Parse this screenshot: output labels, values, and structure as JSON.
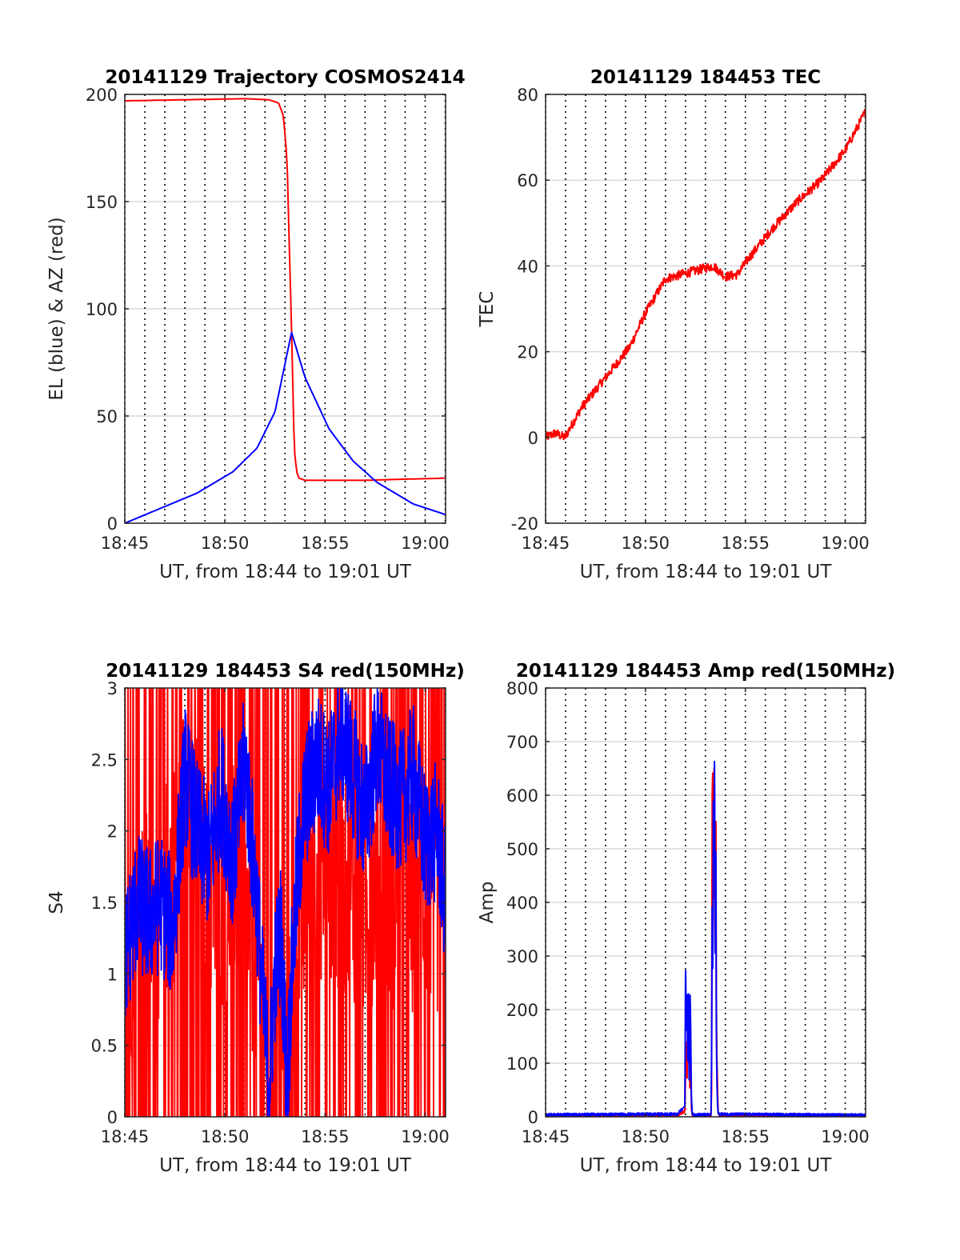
{
  "figure": {
    "background": "#ffffff",
    "grid_color": "#d9d9d9",
    "axis_color": "#262626"
  },
  "chart_data": [
    {
      "type": "line",
      "title": "20141129 Trajectory COSMOS2414",
      "xlabel": "UT, from 18:44 to 19:01 UT",
      "ylabel": "EL (blue) & AZ (red)",
      "xlim": [
        18.75,
        19.017
      ],
      "ylim": [
        0,
        200
      ],
      "x_ticks": [
        18.75,
        18.8333,
        18.9167,
        19.0
      ],
      "x_tick_labels": [
        "18:45",
        "18:50",
        "18:55",
        "19:00"
      ],
      "y_ticks": [
        0,
        50,
        100,
        150,
        200
      ],
      "y_tick_labels": [
        "0",
        "50",
        "100",
        "150",
        "200"
      ],
      "grid": "on",
      "series": [
        {
          "color": "#ff0000",
          "x": [
            18.75,
            18.8,
            18.85,
            18.87,
            18.878,
            18.882,
            18.885,
            18.8888,
            18.891,
            18.893,
            18.895,
            18.9,
            18.92,
            18.95,
            18.98,
            19.017
          ],
          "values": [
            197,
            197.5,
            198,
            197.5,
            196,
            190,
            170,
            90,
            35,
            24,
            21,
            20,
            20,
            20,
            20.5,
            21
          ]
        },
        {
          "color": "#0000ff",
          "x": [
            18.75,
            18.78,
            18.81,
            18.84,
            18.86,
            18.875,
            18.8888,
            18.9,
            18.92,
            18.94,
            18.96,
            18.99,
            19.017
          ],
          "values": [
            0,
            7,
            14,
            24,
            35,
            52,
            89,
            68,
            44,
            29,
            19,
            9,
            4
          ]
        }
      ]
    },
    {
      "type": "line",
      "title": "20141129 184453 TEC",
      "xlabel": "UT, from 18:44 to 19:01 UT",
      "ylabel": "TEC",
      "xlim": [
        18.75,
        19.017
      ],
      "ylim": [
        -20,
        80
      ],
      "x_ticks": [
        18.75,
        18.8333,
        18.9167,
        19.0
      ],
      "x_tick_labels": [
        "18:45",
        "18:50",
        "18:55",
        "19:00"
      ],
      "y_ticks": [
        -20,
        0,
        20,
        40,
        60,
        80
      ],
      "y_tick_labels": [
        "-20",
        "0",
        "20",
        "40",
        "60",
        "80"
      ],
      "grid": "on",
      "series": [
        {
          "color": "#ff0000",
          "x": [
            18.75,
            18.758,
            18.766,
            18.78,
            18.8,
            18.82,
            18.8333,
            18.85,
            18.87,
            18.89,
            18.9,
            18.91,
            18.92,
            18.94,
            18.96,
            18.98,
            19.0,
            19.017
          ],
          "values": [
            0,
            1,
            0,
            7,
            14,
            21,
            29,
            37,
            38.5,
            40,
            37.5,
            38,
            42,
            49,
            55,
            60,
            67,
            76
          ]
        }
      ]
    },
    {
      "type": "line",
      "title": "20141129 184453 S4 red(150MHz)",
      "xlabel": "UT, from 18:44 to 19:01 UT",
      "ylabel": "S4",
      "xlim": [
        18.75,
        19.017
      ],
      "ylim": [
        0,
        3
      ],
      "x_ticks": [
        18.75,
        18.8333,
        18.9167,
        19.0
      ],
      "x_tick_labels": [
        "18:45",
        "18:50",
        "18:55",
        "19:00"
      ],
      "y_ticks": [
        0,
        0.5,
        1,
        1.5,
        2,
        2.5,
        3
      ],
      "y_tick_labels": [
        "0",
        "0.5",
        "1",
        "1.5",
        "2",
        "2.5",
        "3"
      ],
      "grid": "on",
      "series": [
        {
          "color": "#ff0000",
          "x": [
            18.75,
            18.76,
            18.775,
            18.79,
            18.8,
            18.81,
            18.82,
            18.83,
            18.84,
            18.85,
            18.86,
            18.87,
            18.875,
            18.88,
            18.885,
            18.89,
            18.895,
            18.9,
            18.91,
            18.92,
            18.93,
            18.94,
            18.95,
            18.96,
            18.97,
            18.98,
            18.99,
            19.0,
            19.01,
            19.017
          ],
          "values": [
            1.0,
            1.3,
            1.4,
            1.7,
            2.2,
            1.9,
            1.6,
            1.5,
            1.7,
            1.4,
            1.0,
            0.2,
            0.6,
            0.6,
            0.1,
            1.1,
            1.3,
            1.5,
            1.7,
            1.8,
            1.5,
            1.6,
            1.4,
            1.7,
            1.5,
            1.6,
            1.4,
            1.6,
            1.5,
            1.5
          ]
        },
        {
          "color": "#0000ff",
          "x": [
            18.75,
            18.76,
            18.77,
            18.78,
            18.79,
            18.8,
            18.81,
            18.82,
            18.83,
            18.84,
            18.85,
            18.86,
            18.865,
            18.87,
            18.875,
            18.88,
            18.885,
            18.89,
            18.895,
            18.9,
            18.91,
            18.92,
            18.93,
            18.94,
            18.95,
            18.96,
            18.97,
            18.98,
            18.99,
            19.0,
            19.01,
            19.017
          ],
          "values": [
            1.1,
            1.5,
            1.4,
            1.5,
            1.3,
            2.4,
            2.0,
            1.8,
            2.3,
            1.8,
            2.5,
            1.5,
            0.8,
            0.2,
            1.0,
            1.3,
            0.2,
            1.2,
            1.8,
            2.2,
            2.5,
            2.3,
            2.7,
            2.4,
            2.1,
            2.6,
            2.3,
            2.2,
            2.4,
            1.9,
            2.0,
            1.5
          ]
        }
      ]
    },
    {
      "type": "line",
      "title": "20141129 184453 Amp red(150MHz)",
      "xlabel": "UT, from 18:44 to 19:01 UT",
      "ylabel": "Amp",
      "xlim": [
        18.75,
        19.017
      ],
      "ylim": [
        0,
        800
      ],
      "x_ticks": [
        18.75,
        18.8333,
        18.9167,
        19.0
      ],
      "x_tick_labels": [
        "18:45",
        "18:50",
        "18:55",
        "19:00"
      ],
      "y_ticks": [
        0,
        100,
        200,
        300,
        400,
        500,
        600,
        700,
        800
      ],
      "y_tick_labels": [
        "0",
        "100",
        "200",
        "300",
        "400",
        "500",
        "600",
        "700",
        "800"
      ],
      "grid": "on",
      "series": [
        {
          "color": "#ff0000",
          "x": [
            18.75,
            18.86,
            18.8662,
            18.8668,
            18.8674,
            18.868,
            18.8686,
            18.8692,
            18.8698,
            18.8704,
            18.871,
            18.8716,
            18.8722,
            18.8728,
            18.873,
            18.888,
            18.8885,
            18.889,
            18.8895,
            18.89,
            18.8905,
            18.891,
            18.8915,
            18.892,
            18.8925,
            18.893,
            18.8935,
            18.894,
            18.895,
            19.017
          ],
          "values": [
            2,
            3,
            10,
            90,
            150,
            60,
            200,
            100,
            180,
            40,
            120,
            20,
            5,
            3,
            2,
            2,
            50,
            600,
            650,
            400,
            670,
            500,
            300,
            620,
            200,
            100,
            50,
            10,
            3,
            2
          ]
        },
        {
          "color": "#0000ff",
          "x": [
            18.75,
            18.86,
            18.8662,
            18.8668,
            18.8674,
            18.868,
            18.8686,
            18.8692,
            18.8698,
            18.8704,
            18.871,
            18.8716,
            18.8722,
            18.8728,
            18.873,
            18.888,
            18.8885,
            18.889,
            18.8895,
            18.89,
            18.8905,
            18.891,
            18.8915,
            18.892,
            18.8925,
            18.893,
            18.8935,
            18.894,
            18.895,
            19.017
          ],
          "values": [
            4,
            5,
            20,
            300,
            150,
            240,
            100,
            230,
            60,
            240,
            180,
            40,
            10,
            5,
            4,
            4,
            100,
            400,
            250,
            600,
            450,
            693,
            300,
            550,
            150,
            60,
            20,
            8,
            5,
            3
          ]
        }
      ]
    }
  ]
}
